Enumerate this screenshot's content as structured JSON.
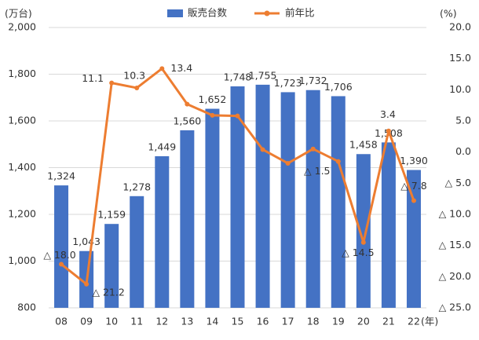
{
  "chart_data": {
    "type": "bar+line",
    "y_label": "(万台)",
    "y2_label": "(%)",
    "x_label": "(年)",
    "categories": [
      "08",
      "09",
      "10",
      "11",
      "12",
      "13",
      "14",
      "15",
      "16",
      "17",
      "18",
      "19",
      "20",
      "21",
      "22"
    ],
    "series": [
      {
        "name": "販売台数",
        "type": "bar",
        "color": "#4472c4",
        "values": [
          1324,
          1043,
          1159,
          1278,
          1449,
          1560,
          1652,
          1748,
          1755,
          1723,
          1732,
          1706,
          1458,
          1508,
          1390
        ],
        "value_labels": [
          "1,324",
          "1,043",
          "1,159",
          "1,278",
          "1,449",
          "1,560",
          "1,652",
          "1,748",
          "1,755",
          "1,723",
          "1,732",
          "1,706",
          "1,458",
          "1,508",
          "1,390"
        ]
      },
      {
        "name": "前年比",
        "type": "line",
        "axis": "y2",
        "color": "#ed7d31",
        "values": [
          -18.0,
          -21.2,
          11.1,
          10.3,
          13.4,
          7.7,
          5.9,
          5.8,
          0.4,
          -1.8,
          0.5,
          -1.5,
          -14.5,
          3.4,
          -7.8
        ],
        "value_labels": [
          "△ 18.0",
          "△ 21.2",
          "11.1",
          "10.3",
          "13.4",
          null,
          null,
          null,
          null,
          null,
          null,
          "△ 1.5",
          "△ 14.5",
          "3.4",
          "△ 7.8"
        ]
      }
    ],
    "ylim": [
      800,
      2000
    ],
    "yticks": [
      800,
      {
        "value": 1000,
        "label": "1,000"
      },
      {
        "value": 1200,
        "label": "1,200"
      },
      {
        "value": 1400,
        "label": "1,400"
      },
      {
        "value": 1600,
        "label": "1,600"
      },
      {
        "value": 1800,
        "label": "1,800"
      },
      {
        "value": 2000,
        "label": "2,000"
      }
    ],
    "y2lim": [
      -25,
      20
    ],
    "y2ticks": [
      {
        "value": 20,
        "label": "20.0"
      },
      {
        "value": 15,
        "label": "15.0"
      },
      {
        "value": 10,
        "label": "10.0"
      },
      {
        "value": 5,
        "label": "5.0"
      },
      {
        "value": 0,
        "label": "0.0"
      },
      {
        "value": -5,
        "label": "△ 5.0"
      },
      {
        "value": -10,
        "label": "△ 10.0"
      },
      {
        "value": -15,
        "label": "△ 15.0"
      },
      {
        "value": -20,
        "label": "△ 20.0"
      },
      {
        "value": -25,
        "label": "△ 25.0"
      }
    ],
    "grid": true,
    "legend": "top"
  }
}
